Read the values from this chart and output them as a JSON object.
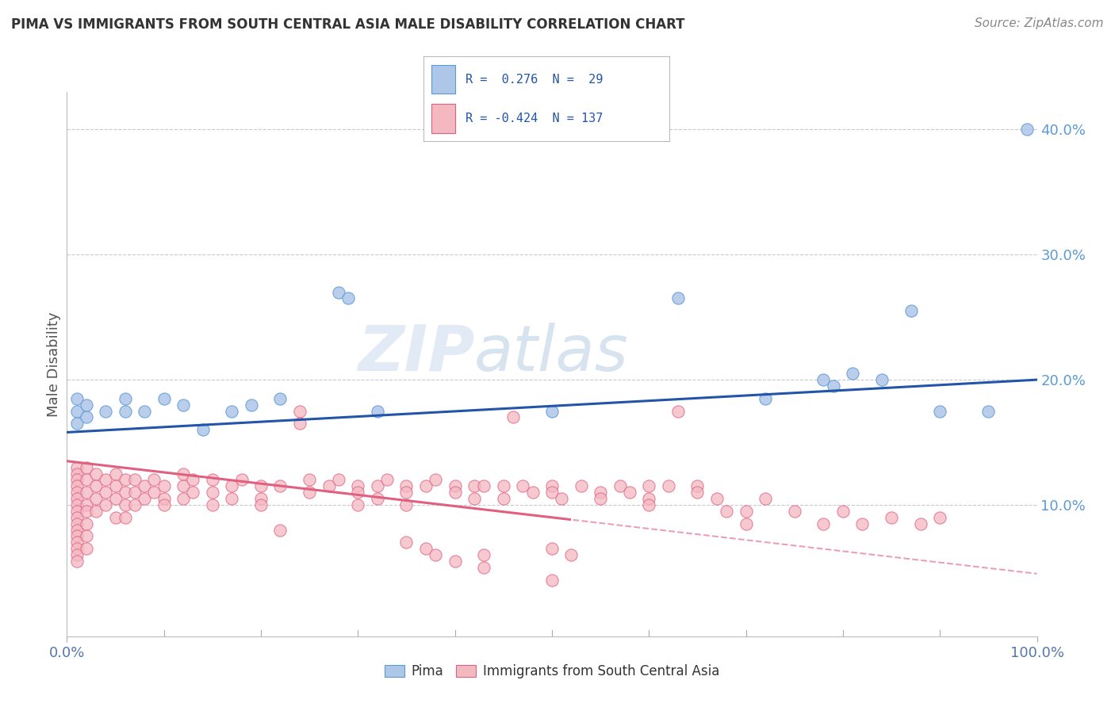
{
  "title": "PIMA VS IMMIGRANTS FROM SOUTH CENTRAL ASIA MALE DISABILITY CORRELATION CHART",
  "source": "Source: ZipAtlas.com",
  "ylabel": "Male Disability",
  "y_ticks": [
    0.1,
    0.2,
    0.3,
    0.4
  ],
  "y_tick_labels": [
    "10.0%",
    "20.0%",
    "30.0%",
    "40.0%"
  ],
  "xlim": [
    0.0,
    1.0
  ],
  "ylim": [
    -0.005,
    0.43
  ],
  "pima_intercept": 0.158,
  "pima_slope": 0.042,
  "immigrant_intercept": 0.135,
  "immigrant_slope": -0.09,
  "pima_color": "#aec6e8",
  "pima_edge_color": "#5b9bd5",
  "immigrant_color": "#f4b8c1",
  "immigrant_edge_color": "#e06080",
  "trend_pima_color": "#2255aa",
  "trend_immigrant_color": "#e06080",
  "background_color": "#ffffff",
  "grid_color": "#c8c8d0",
  "watermark": "ZIPatlas",
  "dot_size": 120,
  "pima_scatter": [
    [
      0.01,
      0.175
    ],
    [
      0.01,
      0.185
    ],
    [
      0.01,
      0.165
    ],
    [
      0.02,
      0.17
    ],
    [
      0.02,
      0.18
    ],
    [
      0.04,
      0.175
    ],
    [
      0.06,
      0.175
    ],
    [
      0.06,
      0.185
    ],
    [
      0.08,
      0.175
    ],
    [
      0.1,
      0.185
    ],
    [
      0.12,
      0.18
    ],
    [
      0.14,
      0.16
    ],
    [
      0.17,
      0.175
    ],
    [
      0.19,
      0.18
    ],
    [
      0.22,
      0.185
    ],
    [
      0.28,
      0.27
    ],
    [
      0.29,
      0.265
    ],
    [
      0.32,
      0.175
    ],
    [
      0.5,
      0.175
    ],
    [
      0.63,
      0.265
    ],
    [
      0.72,
      0.185
    ],
    [
      0.78,
      0.2
    ],
    [
      0.79,
      0.195
    ],
    [
      0.81,
      0.205
    ],
    [
      0.84,
      0.2
    ],
    [
      0.87,
      0.255
    ],
    [
      0.9,
      0.175
    ],
    [
      0.95,
      0.175
    ],
    [
      0.99,
      0.4
    ]
  ],
  "immigrant_scatter": [
    [
      0.01,
      0.13
    ],
    [
      0.01,
      0.125
    ],
    [
      0.01,
      0.12
    ],
    [
      0.01,
      0.115
    ],
    [
      0.01,
      0.11
    ],
    [
      0.01,
      0.105
    ],
    [
      0.01,
      0.1
    ],
    [
      0.01,
      0.095
    ],
    [
      0.01,
      0.09
    ],
    [
      0.01,
      0.085
    ],
    [
      0.01,
      0.08
    ],
    [
      0.01,
      0.075
    ],
    [
      0.01,
      0.07
    ],
    [
      0.01,
      0.065
    ],
    [
      0.01,
      0.06
    ],
    [
      0.01,
      0.055
    ],
    [
      0.02,
      0.13
    ],
    [
      0.02,
      0.12
    ],
    [
      0.02,
      0.11
    ],
    [
      0.02,
      0.1
    ],
    [
      0.02,
      0.095
    ],
    [
      0.02,
      0.085
    ],
    [
      0.02,
      0.075
    ],
    [
      0.02,
      0.065
    ],
    [
      0.03,
      0.125
    ],
    [
      0.03,
      0.115
    ],
    [
      0.03,
      0.105
    ],
    [
      0.03,
      0.095
    ],
    [
      0.04,
      0.12
    ],
    [
      0.04,
      0.11
    ],
    [
      0.04,
      0.1
    ],
    [
      0.05,
      0.125
    ],
    [
      0.05,
      0.115
    ],
    [
      0.05,
      0.105
    ],
    [
      0.05,
      0.09
    ],
    [
      0.06,
      0.12
    ],
    [
      0.06,
      0.11
    ],
    [
      0.06,
      0.1
    ],
    [
      0.06,
      0.09
    ],
    [
      0.07,
      0.12
    ],
    [
      0.07,
      0.11
    ],
    [
      0.07,
      0.1
    ],
    [
      0.08,
      0.115
    ],
    [
      0.08,
      0.105
    ],
    [
      0.09,
      0.12
    ],
    [
      0.09,
      0.11
    ],
    [
      0.1,
      0.115
    ],
    [
      0.1,
      0.105
    ],
    [
      0.1,
      0.1
    ],
    [
      0.12,
      0.125
    ],
    [
      0.12,
      0.115
    ],
    [
      0.12,
      0.105
    ],
    [
      0.13,
      0.12
    ],
    [
      0.13,
      0.11
    ],
    [
      0.15,
      0.12
    ],
    [
      0.15,
      0.11
    ],
    [
      0.15,
      0.1
    ],
    [
      0.17,
      0.115
    ],
    [
      0.17,
      0.105
    ],
    [
      0.18,
      0.12
    ],
    [
      0.2,
      0.115
    ],
    [
      0.2,
      0.105
    ],
    [
      0.2,
      0.1
    ],
    [
      0.22,
      0.115
    ],
    [
      0.24,
      0.175
    ],
    [
      0.24,
      0.165
    ],
    [
      0.25,
      0.12
    ],
    [
      0.25,
      0.11
    ],
    [
      0.27,
      0.115
    ],
    [
      0.28,
      0.12
    ],
    [
      0.3,
      0.115
    ],
    [
      0.3,
      0.11
    ],
    [
      0.3,
      0.1
    ],
    [
      0.32,
      0.115
    ],
    [
      0.32,
      0.105
    ],
    [
      0.33,
      0.12
    ],
    [
      0.35,
      0.115
    ],
    [
      0.35,
      0.11
    ],
    [
      0.35,
      0.1
    ],
    [
      0.37,
      0.115
    ],
    [
      0.38,
      0.12
    ],
    [
      0.4,
      0.115
    ],
    [
      0.4,
      0.11
    ],
    [
      0.42,
      0.115
    ],
    [
      0.42,
      0.105
    ],
    [
      0.43,
      0.115
    ],
    [
      0.45,
      0.115
    ],
    [
      0.45,
      0.105
    ],
    [
      0.46,
      0.17
    ],
    [
      0.47,
      0.115
    ],
    [
      0.48,
      0.11
    ],
    [
      0.5,
      0.115
    ],
    [
      0.5,
      0.11
    ],
    [
      0.51,
      0.105
    ],
    [
      0.53,
      0.115
    ],
    [
      0.55,
      0.11
    ],
    [
      0.55,
      0.105
    ],
    [
      0.57,
      0.115
    ],
    [
      0.58,
      0.11
    ],
    [
      0.6,
      0.115
    ],
    [
      0.6,
      0.105
    ],
    [
      0.6,
      0.1
    ],
    [
      0.62,
      0.115
    ],
    [
      0.63,
      0.175
    ],
    [
      0.65,
      0.115
    ],
    [
      0.65,
      0.11
    ],
    [
      0.67,
      0.105
    ],
    [
      0.68,
      0.095
    ],
    [
      0.7,
      0.095
    ],
    [
      0.7,
      0.085
    ],
    [
      0.72,
      0.105
    ],
    [
      0.75,
      0.095
    ],
    [
      0.78,
      0.085
    ],
    [
      0.8,
      0.095
    ],
    [
      0.82,
      0.085
    ],
    [
      0.85,
      0.09
    ],
    [
      0.88,
      0.085
    ],
    [
      0.9,
      0.09
    ],
    [
      0.43,
      0.05
    ],
    [
      0.5,
      0.04
    ],
    [
      0.22,
      0.08
    ],
    [
      0.35,
      0.07
    ],
    [
      0.37,
      0.065
    ],
    [
      0.38,
      0.06
    ],
    [
      0.4,
      0.055
    ],
    [
      0.43,
      0.06
    ],
    [
      0.5,
      0.065
    ],
    [
      0.52,
      0.06
    ]
  ]
}
